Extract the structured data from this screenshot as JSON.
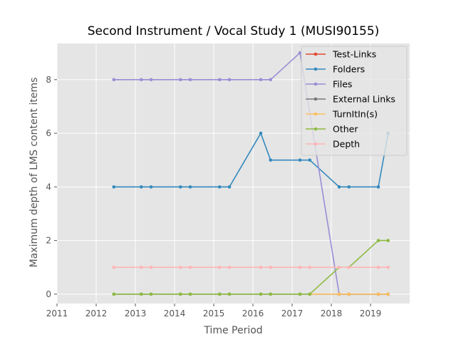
{
  "chart_data": {
    "type": "line",
    "title": "Second Instrument / Vocal Study 1 (MUSI90155)",
    "xlabel": "Time Period",
    "ylabel": "Maximum depth of LMS content items",
    "xlim": [
      2011,
      2020
    ],
    "ylim": [
      -0.35,
      9.35
    ],
    "xticks": [
      2011,
      2012,
      2013,
      2014,
      2015,
      2016,
      2017,
      2018,
      2019
    ],
    "xtick_labels": [
      "2011",
      "2012",
      "2013",
      "2014",
      "2015",
      "2016",
      "2017",
      "2018",
      "2019"
    ],
    "yticks": [
      0,
      2,
      4,
      6,
      8
    ],
    "ytick_labels": [
      "0",
      "2",
      "4",
      "6",
      "8"
    ],
    "grid": true,
    "legend_position": "top-right",
    "series": [
      {
        "name": "Test-Links",
        "color": "#E24A33",
        "x": [
          2018.2,
          2018.45,
          2019.2,
          2019.45
        ],
        "y": [
          0,
          0,
          0,
          0
        ]
      },
      {
        "name": "Folders",
        "color": "#348ABD",
        "x": [
          2012.45,
          2013.15,
          2013.4,
          2014.15,
          2014.4,
          2015.15,
          2015.4,
          2016.2,
          2016.45,
          2017.2,
          2017.45,
          2018.2,
          2018.45,
          2019.2,
          2019.45
        ],
        "y": [
          4,
          4,
          4,
          4,
          4,
          4,
          4,
          6,
          5,
          5,
          5,
          4,
          4,
          4,
          6
        ]
      },
      {
        "name": "Files",
        "color": "#988ED5",
        "x": [
          2012.45,
          2013.15,
          2013.4,
          2014.15,
          2014.4,
          2015.15,
          2015.4,
          2016.2,
          2016.45,
          2017.2,
          2018.2,
          2018.45,
          2019.2,
          2019.45
        ],
        "y": [
          8,
          8,
          8,
          8,
          8,
          8,
          8,
          8,
          8,
          9,
          0,
          0,
          0,
          0
        ]
      },
      {
        "name": "External Links",
        "color": "#777777",
        "x": [
          2012.45,
          2013.15,
          2013.4,
          2014.15,
          2014.4,
          2015.15,
          2015.4,
          2016.2,
          2016.45,
          2017.2,
          2017.45,
          2018.2,
          2018.45,
          2019.2,
          2019.45
        ],
        "y": [
          0,
          0,
          0,
          0,
          0,
          0,
          0,
          0,
          0,
          0,
          0,
          0,
          0,
          0,
          0
        ]
      },
      {
        "name": "TurnItIn(s)",
        "color": "#FBC15E",
        "x": [
          2017.45,
          2018.2,
          2018.45,
          2019.2,
          2019.45
        ],
        "y": [
          0,
          0,
          0,
          0,
          0
        ]
      },
      {
        "name": "Other",
        "color": "#8EBA42",
        "x": [
          2012.45,
          2013.15,
          2013.4,
          2014.15,
          2014.4,
          2015.15,
          2015.4,
          2016.2,
          2016.45,
          2017.2,
          2017.45,
          2018.2,
          2018.45,
          2019.2,
          2019.45
        ],
        "y": [
          0,
          0,
          0,
          0,
          0,
          0,
          0,
          0,
          0,
          0,
          0,
          1,
          1,
          2,
          2
        ]
      },
      {
        "name": "Depth",
        "color": "#FFB5B8",
        "x": [
          2012.45,
          2013.15,
          2013.4,
          2014.15,
          2014.4,
          2015.15,
          2015.4,
          2016.2,
          2016.45,
          2017.2,
          2017.45,
          2018.2,
          2018.45,
          2019.2,
          2019.45
        ],
        "y": [
          1,
          1,
          1,
          1,
          1,
          1,
          1,
          1,
          1,
          1,
          1,
          1,
          1,
          1,
          1
        ]
      }
    ],
    "colors": {
      "plot_background": "#E5E5E5",
      "grid": "#FFFFFF",
      "legend_background": "#E5E5E5",
      "legend_border": "#CCCCCC"
    }
  }
}
